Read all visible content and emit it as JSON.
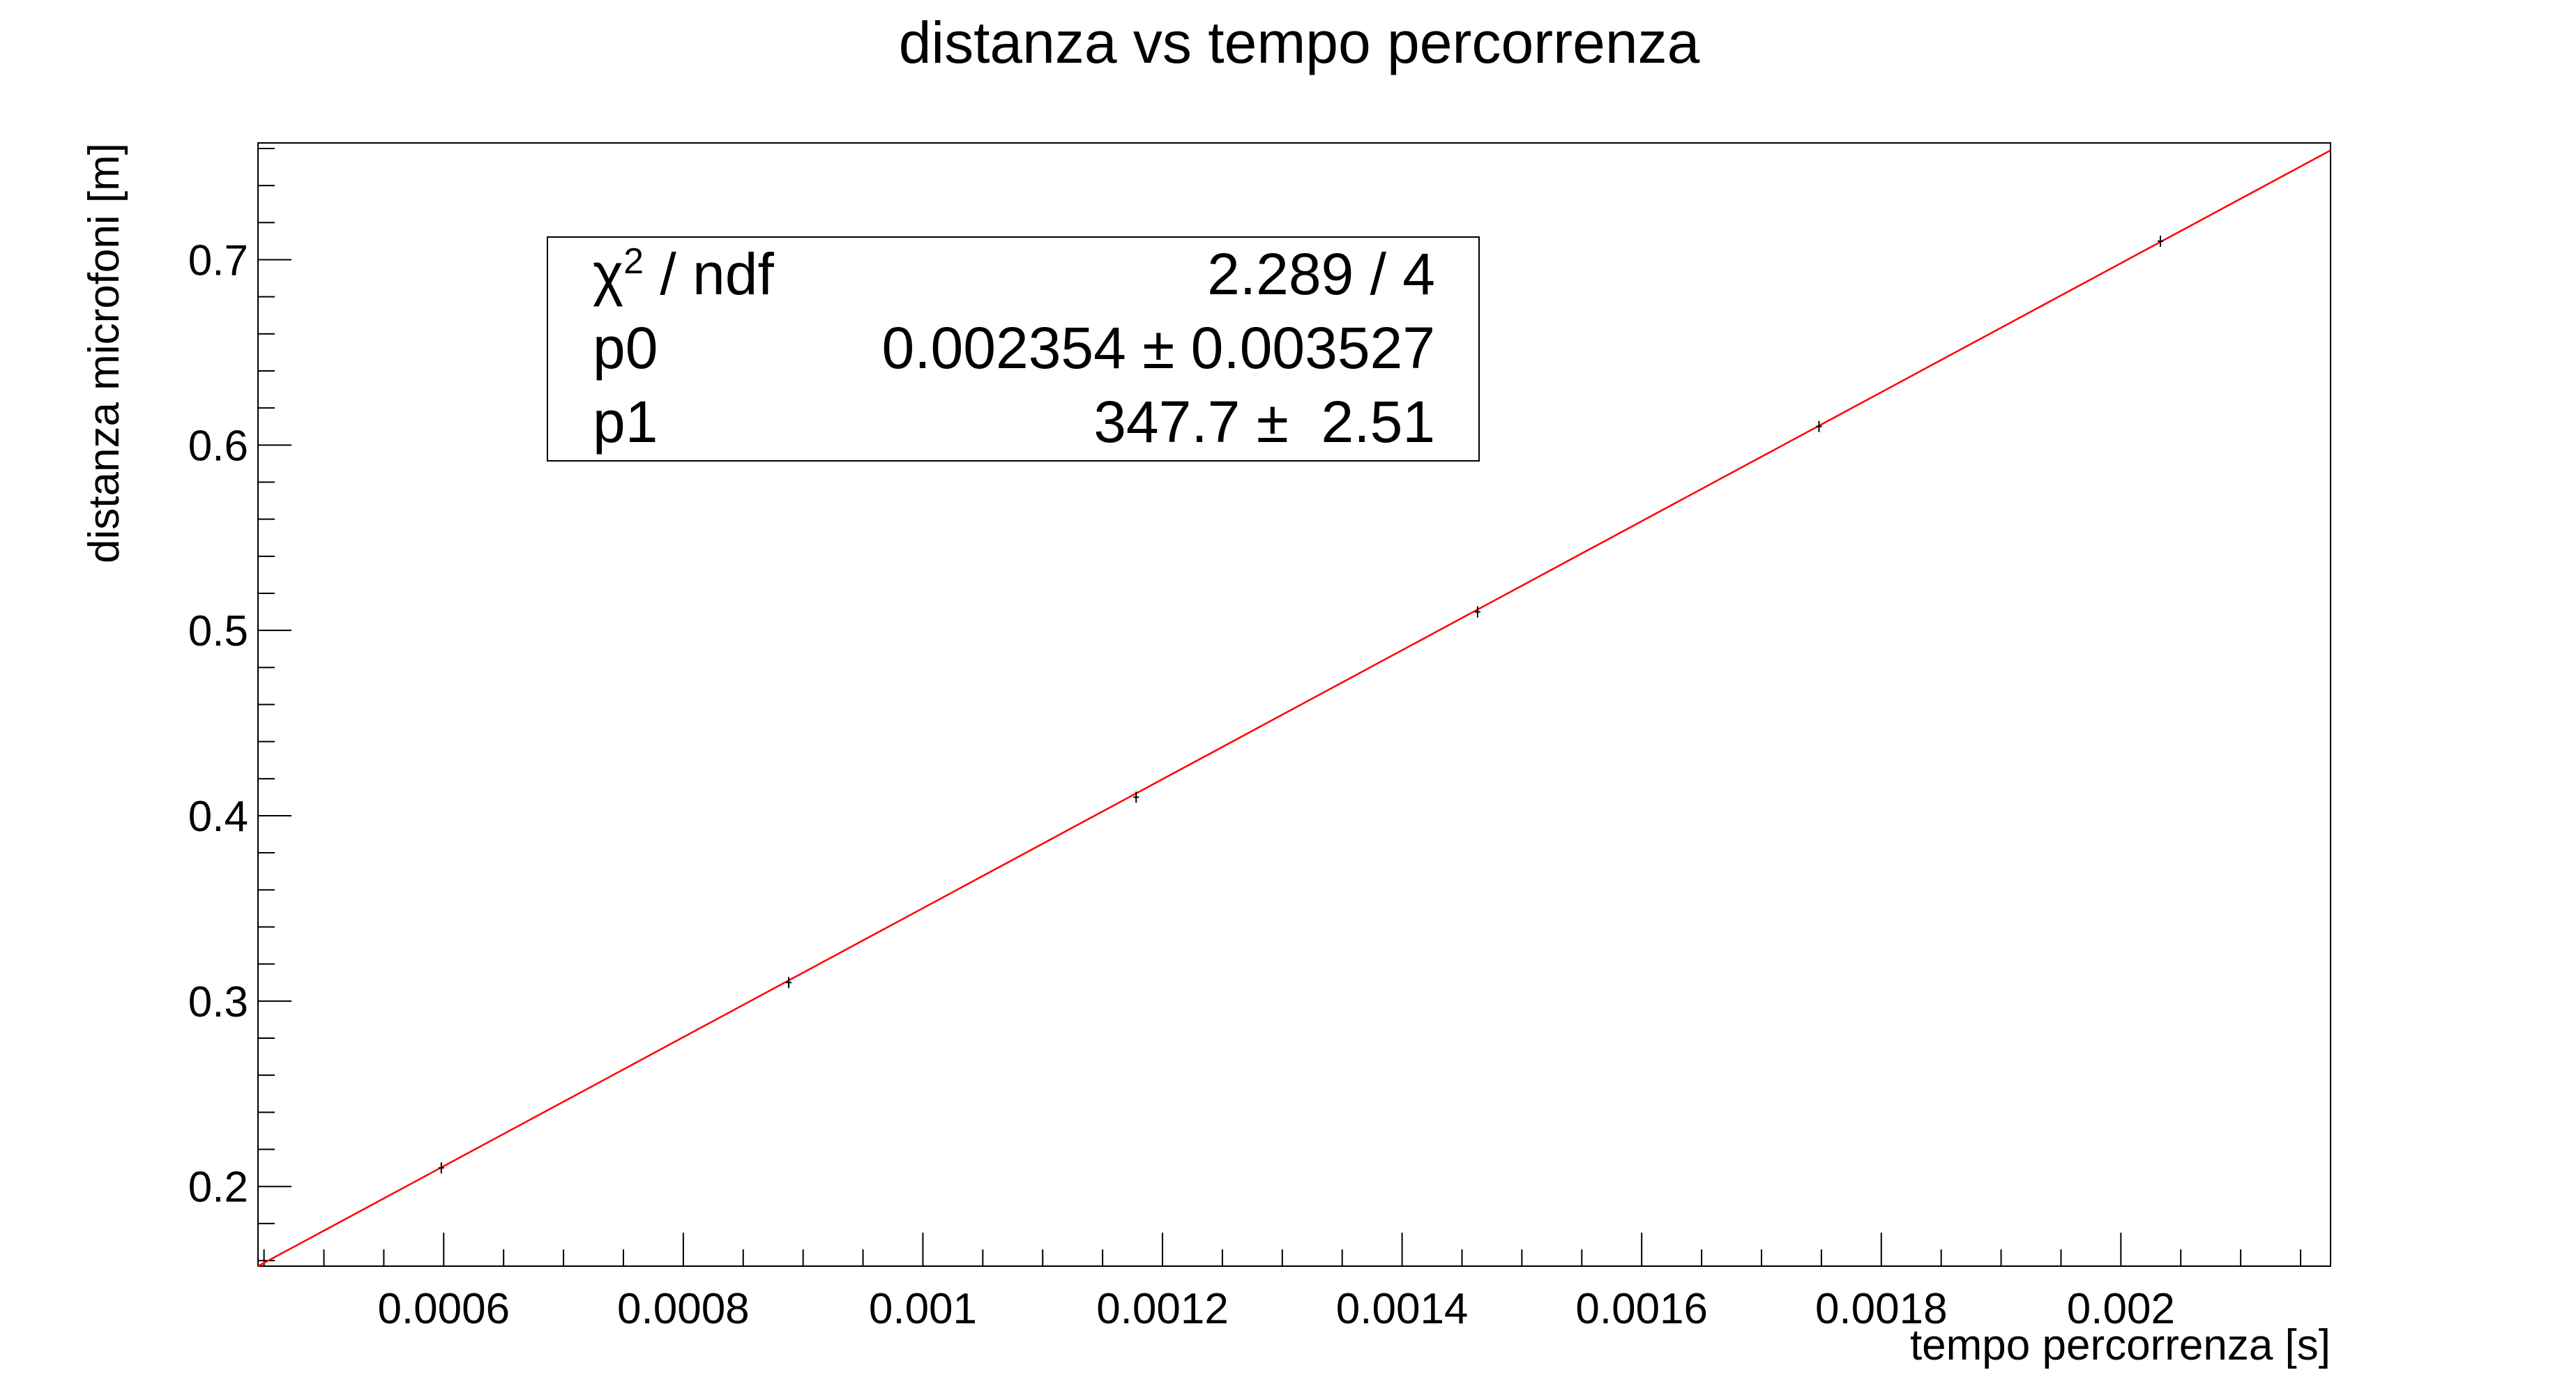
{
  "chart_data": {
    "type": "scatter",
    "title": "distanza vs tempo percorrenza",
    "xlabel": "tempo percorrenza [s]",
    "ylabel": "distanza microfoni [m]",
    "xlim": [
      0.000445,
      0.002175
    ],
    "ylim": [
      0.157,
      0.763
    ],
    "x_ticks": [
      {
        "value": 0.0006,
        "label": "0.0006"
      },
      {
        "value": 0.0008,
        "label": "0.0008"
      },
      {
        "value": 0.001,
        "label": "0.001"
      },
      {
        "value": 0.0012,
        "label": "0.0012"
      },
      {
        "value": 0.0014,
        "label": "0.0014"
      },
      {
        "value": 0.0016,
        "label": "0.0016"
      },
      {
        "value": 0.0018,
        "label": "0.0018"
      },
      {
        "value": 0.002,
        "label": "0.002"
      }
    ],
    "y_ticks": [
      {
        "value": 0.2,
        "label": "0.2"
      },
      {
        "value": 0.3,
        "label": "0.3"
      },
      {
        "value": 0.4,
        "label": "0.4"
      },
      {
        "value": 0.5,
        "label": "0.5"
      },
      {
        "value": 0.6,
        "label": "0.6"
      },
      {
        "value": 0.7,
        "label": "0.7"
      }
    ],
    "grid": false,
    "series": [
      {
        "type": "scatter",
        "color": "#000000",
        "points": [
          {
            "x": 0.000598,
            "y": 0.21
          },
          {
            "x": 0.000888,
            "y": 0.31
          },
          {
            "x": 0.001178,
            "y": 0.41
          },
          {
            "x": 0.001463,
            "y": 0.51
          },
          {
            "x": 0.001748,
            "y": 0.61
          },
          {
            "x": 0.002033,
            "y": 0.71
          }
        ],
        "y_error": 0.003
      },
      {
        "type": "line",
        "color": "#ff0000",
        "x": [
          0.000445,
          0.002175
        ],
        "y": [
          0.157,
          0.759
        ]
      }
    ],
    "stats_box": {
      "rows": [
        {
          "label": "χ",
          "superscript": "2",
          "label_rest": " / ndf",
          "value": "2.289 / 4"
        },
        {
          "label": "p0",
          "superscript": "",
          "label_rest": "",
          "value": "0.002354 ± 0.003527"
        },
        {
          "label": "p1",
          "superscript": "",
          "label_rest": "",
          "value": "347.7 ±  2.51"
        }
      ],
      "placement": "top-left"
    }
  }
}
